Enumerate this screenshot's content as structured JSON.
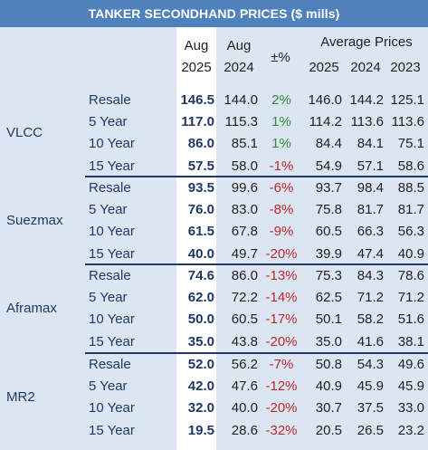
{
  "title": "TANKER SECONDHAND PRICES ($ mills)",
  "header": {
    "aug2025_top": "Aug",
    "aug2025_bottom": "2025",
    "aug2024_top": "Aug",
    "aug2024_bottom": "2024",
    "change": "±%",
    "avg_label": "Average Prices",
    "avg2025": "2025",
    "avg2024": "2024",
    "avg2023": "2023"
  },
  "groups": [
    {
      "name": "VLCC",
      "rows": [
        {
          "age": "Resale",
          "aug25": "146.5",
          "aug24": "144.0",
          "chg": "2%",
          "a25": "146.0",
          "a24": "144.2",
          "a23": "125.1",
          "sign": "pos"
        },
        {
          "age": "5 Year",
          "aug25": "117.0",
          "aug24": "115.3",
          "chg": "1%",
          "a25": "114.2",
          "a24": "113.6",
          "a23": "113.6",
          "sign": "pos"
        },
        {
          "age": "10 Year",
          "aug25": "86.0",
          "aug24": "85.1",
          "chg": "1%",
          "a25": "84.4",
          "a24": "84.1",
          "a23": "75.1",
          "sign": "pos"
        },
        {
          "age": "15 Year",
          "aug25": "57.5",
          "aug24": "58.0",
          "chg": "-1%",
          "a25": "54.9",
          "a24": "57.1",
          "a23": "58.6",
          "sign": "neg"
        }
      ]
    },
    {
      "name": "Suezmax",
      "rows": [
        {
          "age": "Resale",
          "aug25": "93.5",
          "aug24": "99.6",
          "chg": "-6%",
          "a25": "93.7",
          "a24": "98.4",
          "a23": "88.5",
          "sign": "neg"
        },
        {
          "age": "5 Year",
          "aug25": "76.0",
          "aug24": "83.0",
          "chg": "-8%",
          "a25": "75.8",
          "a24": "81.7",
          "a23": "81.7",
          "sign": "neg"
        },
        {
          "age": "10 Year",
          "aug25": "61.5",
          "aug24": "67.8",
          "chg": "-9%",
          "a25": "60.5",
          "a24": "66.3",
          "a23": "56.3",
          "sign": "neg"
        },
        {
          "age": "15 Year",
          "aug25": "40.0",
          "aug24": "49.7",
          "chg": "-20%",
          "a25": "39.9",
          "a24": "47.4",
          "a23": "40.9",
          "sign": "neg"
        }
      ]
    },
    {
      "name": "Aframax",
      "rows": [
        {
          "age": "Resale",
          "aug25": "74.6",
          "aug24": "86.0",
          "chg": "-13%",
          "a25": "75.3",
          "a24": "84.3",
          "a23": "78.6",
          "sign": "neg"
        },
        {
          "age": "5 Year",
          "aug25": "62.0",
          "aug24": "72.2",
          "chg": "-14%",
          "a25": "62.5",
          "a24": "71.2",
          "a23": "71.2",
          "sign": "neg"
        },
        {
          "age": "10 Year",
          "aug25": "50.0",
          "aug24": "60.5",
          "chg": "-17%",
          "a25": "50.1",
          "a24": "58.2",
          "a23": "51.6",
          "sign": "neg"
        },
        {
          "age": "15 Year",
          "aug25": "35.0",
          "aug24": "43.8",
          "chg": "-20%",
          "a25": "35.0",
          "a24": "41.6",
          "a23": "38.1",
          "sign": "neg"
        }
      ]
    },
    {
      "name": "MR2",
      "rows": [
        {
          "age": "Resale",
          "aug25": "52.0",
          "aug24": "56.2",
          "chg": "-7%",
          "a25": "50.8",
          "a24": "54.3",
          "a23": "49.6",
          "sign": "neg"
        },
        {
          "age": "5 Year",
          "aug25": "42.0",
          "aug24": "47.6",
          "chg": "-12%",
          "a25": "40.9",
          "a24": "45.9",
          "a23": "45.9",
          "sign": "neg"
        },
        {
          "age": "10 Year",
          "aug25": "32.0",
          "aug24": "40.0",
          "chg": "-20%",
          "a25": "30.7",
          "a24": "37.5",
          "a23": "33.0",
          "sign": "neg"
        },
        {
          "age": "15 Year",
          "aug25": "19.5",
          "aug24": "28.6",
          "chg": "-32%",
          "a25": "20.5",
          "a24": "26.5",
          "a23": "23.2",
          "sign": "neg"
        }
      ]
    }
  ]
}
